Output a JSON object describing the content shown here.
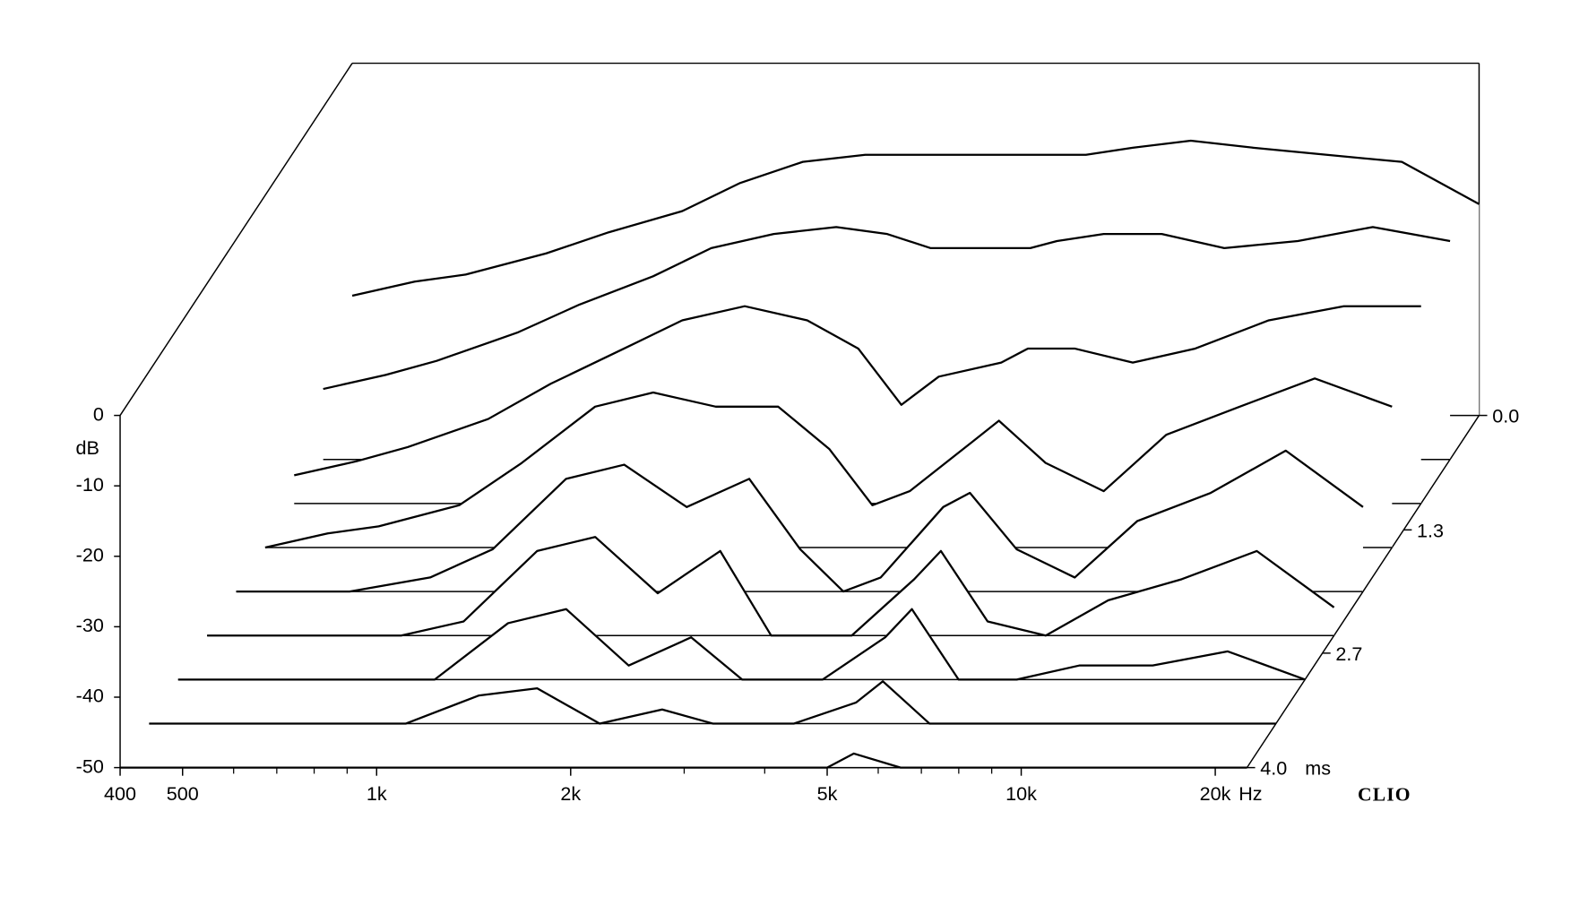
{
  "chart_data": {
    "type": "waterfall",
    "y_label": "dB",
    "x_unit": "Hz",
    "z_unit": "ms",
    "brand": "CLIO",
    "xscale": "log",
    "xlim": [
      400,
      22400
    ],
    "ylim": [
      -50,
      0
    ],
    "zlim": [
      0,
      4
    ],
    "xticks": [
      400,
      500,
      {
        "value": 1000,
        "label": "1k"
      },
      {
        "value": 2000,
        "label": "2k"
      },
      {
        "value": 5000,
        "label": "5k"
      },
      {
        "value": 10000,
        "label": "10k"
      },
      {
        "value": 20000,
        "label": "20k"
      }
    ],
    "xminor_ticks": [
      600,
      700,
      800,
      900,
      3000,
      4000,
      6000,
      7000,
      8000,
      9000
    ],
    "yticks": [
      0,
      -10,
      -20,
      -30,
      -40,
      -50
    ],
    "zticks": [
      {
        "value": 0,
        "label": "0.0"
      },
      1.3,
      2.7,
      {
        "value": 4,
        "label": "4.0"
      }
    ],
    "color": "#000000",
    "x": [
      400,
      500,
      600,
      800,
      1000,
      1300,
      1600,
      2000,
      2500,
      3000,
      3500,
      4000,
      5000,
      5500,
      6500,
      8000,
      10000,
      13000,
      17000,
      22400
    ],
    "slices": [
      {
        "time": 0,
        "values": [
          -33,
          -31,
          -30,
          -27,
          -24,
          -21,
          -17,
          -14,
          -13,
          -13,
          -13,
          -13,
          -13,
          -13,
          -12,
          -11,
          -12,
          -13,
          -14,
          -20
        ]
      },
      {
        "time": 0.5,
        "values": [
          -40,
          -38,
          -36,
          -32,
          -28,
          -24,
          -20,
          -18,
          -17,
          -18,
          -20,
          -20,
          -20,
          -19,
          -18,
          -18,
          -20,
          -19,
          -17,
          -19
        ]
      },
      {
        "time": 1,
        "values": [
          -46,
          -44,
          -42,
          -38,
          -33,
          -28,
          -24,
          -22,
          -24,
          -28,
          -36,
          -32,
          -30,
          -28,
          -28,
          -30,
          -28,
          -24,
          -22,
          -22
        ]
      },
      {
        "time": 1.5,
        "values": [
          -50,
          -48,
          -47,
          -44,
          -38,
          -30,
          -28,
          -30,
          -30,
          -36,
          -44,
          -42,
          -35,
          -32,
          -38,
          -42,
          -34,
          -30,
          -26,
          -30
        ]
      },
      {
        "time": 2,
        "values": [
          -50,
          -50,
          -50,
          -48,
          -44,
          -34,
          -32,
          -38,
          -34,
          -44,
          -50,
          -48,
          -38,
          -36,
          -44,
          -48,
          -40,
          -36,
          -30,
          -38
        ]
      },
      {
        "time": 2.5,
        "values": [
          -50,
          -50,
          -50,
          -50,
          -48,
          -38,
          -36,
          -44,
          -38,
          -50,
          -50,
          -50,
          -42,
          -38,
          -48,
          -50,
          -45,
          -42,
          -38,
          -46
        ]
      },
      {
        "time": 3,
        "values": [
          -50,
          -50,
          -50,
          -50,
          -50,
          -42,
          -40,
          -48,
          -44,
          -50,
          -50,
          -50,
          -44,
          -40,
          -50,
          -50,
          -48,
          -48,
          -46,
          -50
        ]
      },
      {
        "time": 3.5,
        "values": [
          -50,
          -50,
          -50,
          -50,
          -50,
          -46,
          -45,
          -50,
          -48,
          -50,
          -50,
          -50,
          -47,
          -44,
          -50,
          -50,
          -50,
          -50,
          -50,
          -50
        ]
      },
      {
        "time": 4,
        "values": [
          -50,
          -50,
          -50,
          -50,
          -50,
          -50,
          -50,
          -50,
          -50,
          -50,
          -50,
          -50,
          -50,
          -48,
          -50,
          -50,
          -50,
          -50,
          -50,
          -50
        ]
      }
    ]
  }
}
